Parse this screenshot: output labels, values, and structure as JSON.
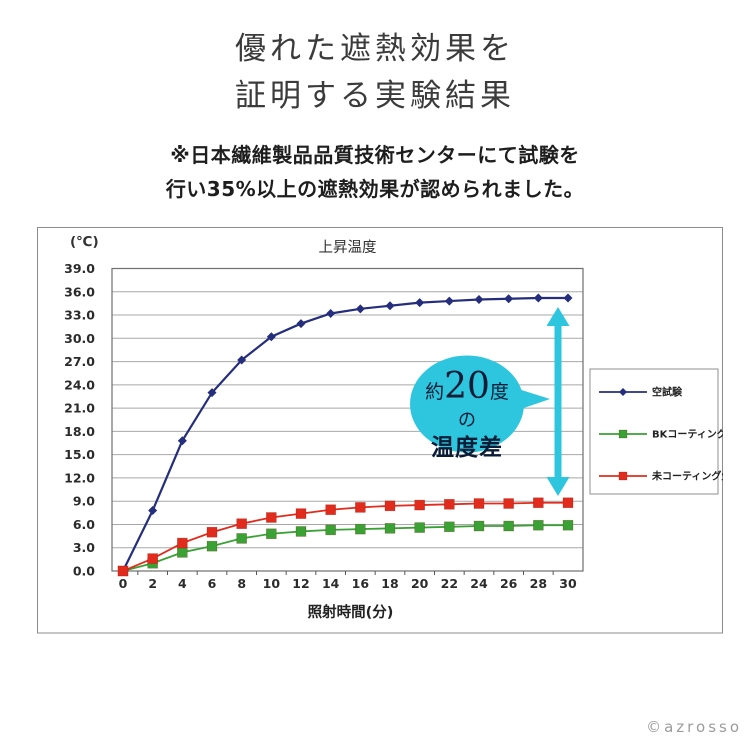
{
  "page": {
    "title_line1": "優れた遮熱効果を",
    "title_line2": "証明する実験結果",
    "subtitle_line1": "※日本繊維製品品質技術センターにて試験を",
    "subtitle_line2": "行い35%以上の遮熱効果が認められました。",
    "copyright": "©azrosso"
  },
  "chart_data": {
    "type": "line",
    "title": "上昇温度",
    "y_unit_label": "(℃)",
    "xlabel": "照射時間(分)",
    "x": [
      0,
      2,
      4,
      6,
      8,
      10,
      12,
      14,
      16,
      18,
      20,
      22,
      24,
      26,
      28,
      30
    ],
    "ylim": [
      0,
      39
    ],
    "ytick_step": 3,
    "yticks": [
      "0.0",
      "3.0",
      "6.0",
      "9.0",
      "12.0",
      "15.0",
      "18.0",
      "21.0",
      "24.0",
      "27.0",
      "30.0",
      "33.0",
      "36.0",
      "39.0"
    ],
    "grid": true,
    "legend_position": "right",
    "series": [
      {
        "name": "空試験",
        "color": "#252e7d",
        "marker": "diamond",
        "values": [
          0.0,
          7.8,
          16.8,
          23.0,
          27.2,
          30.2,
          31.9,
          33.2,
          33.8,
          34.2,
          34.6,
          34.8,
          35.0,
          35.1,
          35.2,
          35.2
        ]
      },
      {
        "name": "BKコーティング生地",
        "color": "#3aa135",
        "marker": "square",
        "values": [
          0.0,
          1.0,
          2.4,
          3.2,
          4.2,
          4.8,
          5.1,
          5.3,
          5.4,
          5.5,
          5.6,
          5.7,
          5.8,
          5.8,
          5.9,
          5.9
        ]
      },
      {
        "name": "未コーティング生地",
        "color": "#e02b1d",
        "marker": "square",
        "values": [
          0.0,
          1.6,
          3.6,
          5.0,
          6.1,
          6.9,
          7.4,
          7.9,
          8.2,
          8.4,
          8.5,
          8.6,
          8.7,
          8.7,
          8.8,
          8.8
        ]
      }
    ],
    "annotation": {
      "balloon_color": "#2ec5de",
      "text_color": "#0a1c36",
      "line1_prefix": "約",
      "line1_number": "20",
      "line1_suffix": "度",
      "line2": "の",
      "line3": "温度差",
      "arrow_between": "空試験 と 未コーティング生地 (x≈29)"
    }
  }
}
